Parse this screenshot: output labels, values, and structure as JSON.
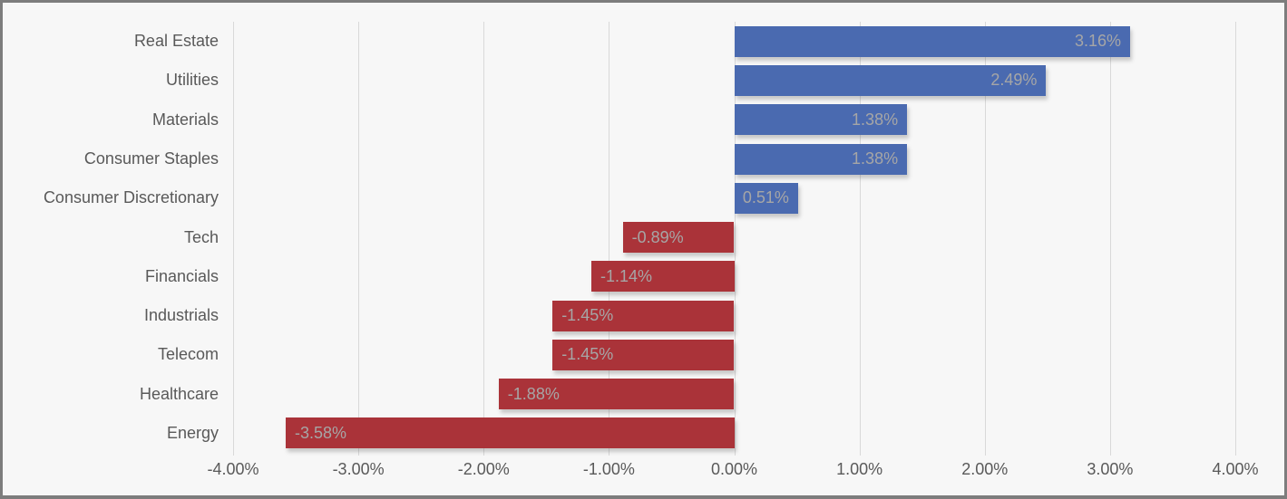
{
  "chart_data": {
    "type": "bar",
    "orientation": "horizontal",
    "title": "",
    "xlabel": "",
    "ylabel": "",
    "categories": [
      "Real Estate",
      "Utilities",
      "Materials",
      "Consumer Staples",
      "Consumer Discretionary",
      "Tech",
      "Financials",
      "Industrials",
      "Telecom",
      "Healthcare",
      "Energy"
    ],
    "values": [
      3.16,
      2.49,
      1.38,
      1.38,
      0.51,
      -0.89,
      -1.14,
      -1.45,
      -1.45,
      -1.88,
      -3.58
    ],
    "value_labels": [
      "3.16%",
      "2.49%",
      "1.38%",
      "1.38%",
      "0.51%",
      "-0.89%",
      "-1.14%",
      "-1.45%",
      "-1.45%",
      "-1.88%",
      "-3.58%"
    ],
    "xlim": [
      -4,
      4
    ],
    "x_ticks": [
      -4,
      -3,
      -2,
      -1,
      0,
      1,
      2,
      3,
      4
    ],
    "x_tick_labels": [
      "-4.00%",
      "-3.00%",
      "-2.00%",
      "-1.00%",
      "0.00%",
      "1.00%",
      "2.00%",
      "3.00%",
      "4.00%"
    ],
    "grid": true,
    "legend": false,
    "colors": {
      "positive_bar": "#4a6ab0",
      "negative_bar": "#aa3339",
      "value_label": "#a6a6a6",
      "axis_label": "#595959",
      "gridline": "#d9d9d9",
      "background": "#f7f7f7",
      "frame_border": "#7d7d7d"
    }
  }
}
